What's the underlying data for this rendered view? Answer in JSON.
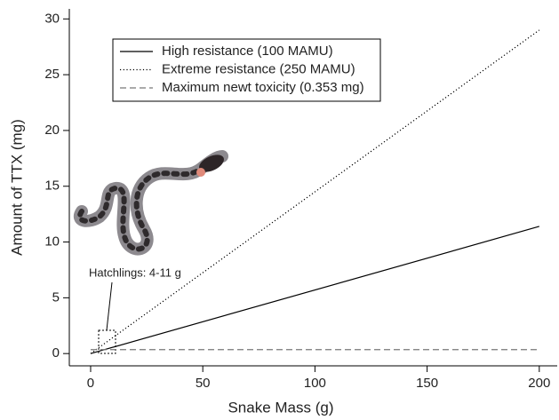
{
  "chart_data": {
    "type": "line",
    "x_label": "Snake Mass (g)",
    "y_label": "Amount of TTX (mg)",
    "x": [
      0,
      200
    ],
    "series": [
      {
        "name": "High resistance (100 MAMU)",
        "color": "#000000",
        "style": "solid",
        "values": [
          0,
          11.4
        ]
      },
      {
        "name": "Extreme resistance (250 MAMU)",
        "color": "#000000",
        "style": "dotted",
        "values": [
          0,
          29.0
        ]
      },
      {
        "name": "Maximum newt toxicity (0.353 mg)",
        "color": "#777777",
        "style": "dashed",
        "values": [
          0.353,
          0.353
        ]
      }
    ],
    "xlim": [
      -9.5,
      208
    ],
    "ylim": [
      -1.1,
      30.9
    ],
    "xticks": [
      0,
      50,
      100,
      150,
      200
    ],
    "yticks": [
      0,
      5,
      10,
      15,
      20,
      25,
      30
    ],
    "grid": false,
    "legend": "top-left",
    "annotation": "Hatchlings: 4-11 g"
  }
}
